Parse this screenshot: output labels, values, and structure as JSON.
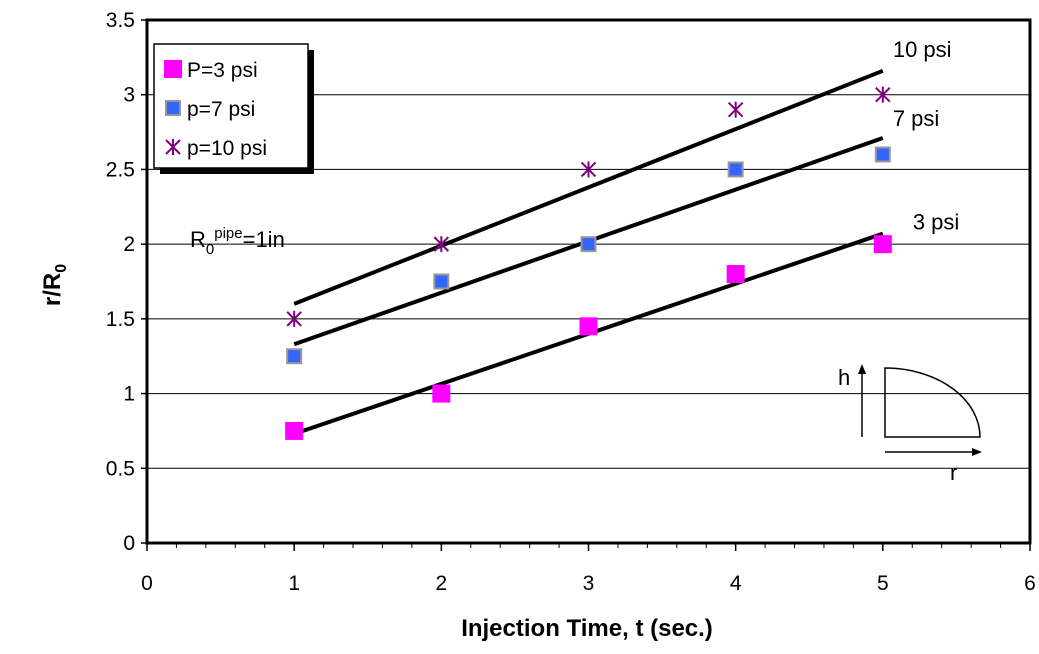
{
  "chart_data": {
    "type": "scatter",
    "xlabel": "Injection Time, t (sec.)",
    "ylabel_main": "r/R",
    "ylabel_sub": "0",
    "xlim": [
      0,
      6
    ],
    "ylim": [
      0,
      3.5
    ],
    "xticks": [
      "0",
      "1",
      "2",
      "3",
      "4",
      "5",
      "6"
    ],
    "yticks": [
      "0",
      "0.5",
      "1",
      "1.5",
      "2",
      "2.5",
      "3",
      "3.5"
    ],
    "grid": "horizontal",
    "legend_position": "top-left",
    "series": [
      {
        "name": "P=3 psi",
        "marker": "square",
        "color": "#ff00ff",
        "x": [
          1,
          2,
          3,
          4,
          5
        ],
        "y": [
          0.75,
          1.0,
          1.45,
          1.8,
          2.0
        ]
      },
      {
        "name": "p=7 psi",
        "marker": "square-small",
        "color": "#3366ff",
        "x": [
          1,
          2,
          3,
          4,
          5
        ],
        "y": [
          1.25,
          1.75,
          2.0,
          2.5,
          2.6
        ]
      },
      {
        "name": "p=10 psi",
        "marker": "asterisk",
        "color": "#800080",
        "x": [
          1,
          2,
          3,
          4,
          5
        ],
        "y": [
          1.5,
          2.0,
          2.5,
          2.9,
          3.0
        ]
      }
    ],
    "trendlines": [
      {
        "label": "3 psi",
        "x": [
          1,
          5
        ],
        "y": [
          0.73,
          2.07
        ]
      },
      {
        "label": "7 psi",
        "x": [
          1,
          5
        ],
        "y": [
          1.33,
          2.71
        ]
      },
      {
        "label": "10 psi",
        "x": [
          1,
          5
        ],
        "y": [
          1.6,
          3.16
        ]
      }
    ],
    "annotation": {
      "base": "R",
      "sub": "0",
      "sup": "pipe",
      "tail": "=1in"
    },
    "inset": {
      "h_label": "h",
      "r_label": "r"
    }
  }
}
